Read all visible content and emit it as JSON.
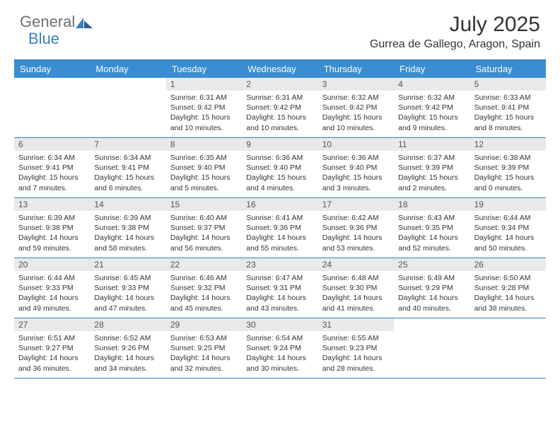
{
  "brand": {
    "word1": "General",
    "word2": "Blue"
  },
  "title": "July 2025",
  "location": "Gurrea de Gallego, Aragon, Spain",
  "colors": {
    "header_bg": "#3a8dd0",
    "border": "#3a7fc3",
    "daynum_bg": "#e9e9e9",
    "text": "#333333",
    "logo_gray": "#6f6f6f",
    "logo_blue": "#3a7fc3"
  },
  "daynames": [
    "Sunday",
    "Monday",
    "Tuesday",
    "Wednesday",
    "Thursday",
    "Friday",
    "Saturday"
  ],
  "weeks": [
    [
      null,
      null,
      {
        "n": "1",
        "sr": "Sunrise: 6:31 AM",
        "ss": "Sunset: 9:42 PM",
        "d1": "Daylight: 15 hours",
        "d2": "and 10 minutes."
      },
      {
        "n": "2",
        "sr": "Sunrise: 6:31 AM",
        "ss": "Sunset: 9:42 PM",
        "d1": "Daylight: 15 hours",
        "d2": "and 10 minutes."
      },
      {
        "n": "3",
        "sr": "Sunrise: 6:32 AM",
        "ss": "Sunset: 9:42 PM",
        "d1": "Daylight: 15 hours",
        "d2": "and 10 minutes."
      },
      {
        "n": "4",
        "sr": "Sunrise: 6:32 AM",
        "ss": "Sunset: 9:42 PM",
        "d1": "Daylight: 15 hours",
        "d2": "and 9 minutes."
      },
      {
        "n": "5",
        "sr": "Sunrise: 6:33 AM",
        "ss": "Sunset: 9:41 PM",
        "d1": "Daylight: 15 hours",
        "d2": "and 8 minutes."
      }
    ],
    [
      {
        "n": "6",
        "sr": "Sunrise: 6:34 AM",
        "ss": "Sunset: 9:41 PM",
        "d1": "Daylight: 15 hours",
        "d2": "and 7 minutes."
      },
      {
        "n": "7",
        "sr": "Sunrise: 6:34 AM",
        "ss": "Sunset: 9:41 PM",
        "d1": "Daylight: 15 hours",
        "d2": "and 6 minutes."
      },
      {
        "n": "8",
        "sr": "Sunrise: 6:35 AM",
        "ss": "Sunset: 9:40 PM",
        "d1": "Daylight: 15 hours",
        "d2": "and 5 minutes."
      },
      {
        "n": "9",
        "sr": "Sunrise: 6:36 AM",
        "ss": "Sunset: 9:40 PM",
        "d1": "Daylight: 15 hours",
        "d2": "and 4 minutes."
      },
      {
        "n": "10",
        "sr": "Sunrise: 6:36 AM",
        "ss": "Sunset: 9:40 PM",
        "d1": "Daylight: 15 hours",
        "d2": "and 3 minutes."
      },
      {
        "n": "11",
        "sr": "Sunrise: 6:37 AM",
        "ss": "Sunset: 9:39 PM",
        "d1": "Daylight: 15 hours",
        "d2": "and 2 minutes."
      },
      {
        "n": "12",
        "sr": "Sunrise: 6:38 AM",
        "ss": "Sunset: 9:39 PM",
        "d1": "Daylight: 15 hours",
        "d2": "and 0 minutes."
      }
    ],
    [
      {
        "n": "13",
        "sr": "Sunrise: 6:39 AM",
        "ss": "Sunset: 9:38 PM",
        "d1": "Daylight: 14 hours",
        "d2": "and 59 minutes."
      },
      {
        "n": "14",
        "sr": "Sunrise: 6:39 AM",
        "ss": "Sunset: 9:38 PM",
        "d1": "Daylight: 14 hours",
        "d2": "and 58 minutes."
      },
      {
        "n": "15",
        "sr": "Sunrise: 6:40 AM",
        "ss": "Sunset: 9:37 PM",
        "d1": "Daylight: 14 hours",
        "d2": "and 56 minutes."
      },
      {
        "n": "16",
        "sr": "Sunrise: 6:41 AM",
        "ss": "Sunset: 9:36 PM",
        "d1": "Daylight: 14 hours",
        "d2": "and 55 minutes."
      },
      {
        "n": "17",
        "sr": "Sunrise: 6:42 AM",
        "ss": "Sunset: 9:36 PM",
        "d1": "Daylight: 14 hours",
        "d2": "and 53 minutes."
      },
      {
        "n": "18",
        "sr": "Sunrise: 6:43 AM",
        "ss": "Sunset: 9:35 PM",
        "d1": "Daylight: 14 hours",
        "d2": "and 52 minutes."
      },
      {
        "n": "19",
        "sr": "Sunrise: 6:44 AM",
        "ss": "Sunset: 9:34 PM",
        "d1": "Daylight: 14 hours",
        "d2": "and 50 minutes."
      }
    ],
    [
      {
        "n": "20",
        "sr": "Sunrise: 6:44 AM",
        "ss": "Sunset: 9:33 PM",
        "d1": "Daylight: 14 hours",
        "d2": "and 49 minutes."
      },
      {
        "n": "21",
        "sr": "Sunrise: 6:45 AM",
        "ss": "Sunset: 9:33 PM",
        "d1": "Daylight: 14 hours",
        "d2": "and 47 minutes."
      },
      {
        "n": "22",
        "sr": "Sunrise: 6:46 AM",
        "ss": "Sunset: 9:32 PM",
        "d1": "Daylight: 14 hours",
        "d2": "and 45 minutes."
      },
      {
        "n": "23",
        "sr": "Sunrise: 6:47 AM",
        "ss": "Sunset: 9:31 PM",
        "d1": "Daylight: 14 hours",
        "d2": "and 43 minutes."
      },
      {
        "n": "24",
        "sr": "Sunrise: 6:48 AM",
        "ss": "Sunset: 9:30 PM",
        "d1": "Daylight: 14 hours",
        "d2": "and 41 minutes."
      },
      {
        "n": "25",
        "sr": "Sunrise: 6:49 AM",
        "ss": "Sunset: 9:29 PM",
        "d1": "Daylight: 14 hours",
        "d2": "and 40 minutes."
      },
      {
        "n": "26",
        "sr": "Sunrise: 6:50 AM",
        "ss": "Sunset: 9:28 PM",
        "d1": "Daylight: 14 hours",
        "d2": "and 38 minutes."
      }
    ],
    [
      {
        "n": "27",
        "sr": "Sunrise: 6:51 AM",
        "ss": "Sunset: 9:27 PM",
        "d1": "Daylight: 14 hours",
        "d2": "and 36 minutes."
      },
      {
        "n": "28",
        "sr": "Sunrise: 6:52 AM",
        "ss": "Sunset: 9:26 PM",
        "d1": "Daylight: 14 hours",
        "d2": "and 34 minutes."
      },
      {
        "n": "29",
        "sr": "Sunrise: 6:53 AM",
        "ss": "Sunset: 9:25 PM",
        "d1": "Daylight: 14 hours",
        "d2": "and 32 minutes."
      },
      {
        "n": "30",
        "sr": "Sunrise: 6:54 AM",
        "ss": "Sunset: 9:24 PM",
        "d1": "Daylight: 14 hours",
        "d2": "and 30 minutes."
      },
      {
        "n": "31",
        "sr": "Sunrise: 6:55 AM",
        "ss": "Sunset: 9:23 PM",
        "d1": "Daylight: 14 hours",
        "d2": "and 28 minutes."
      },
      null,
      null
    ]
  ]
}
